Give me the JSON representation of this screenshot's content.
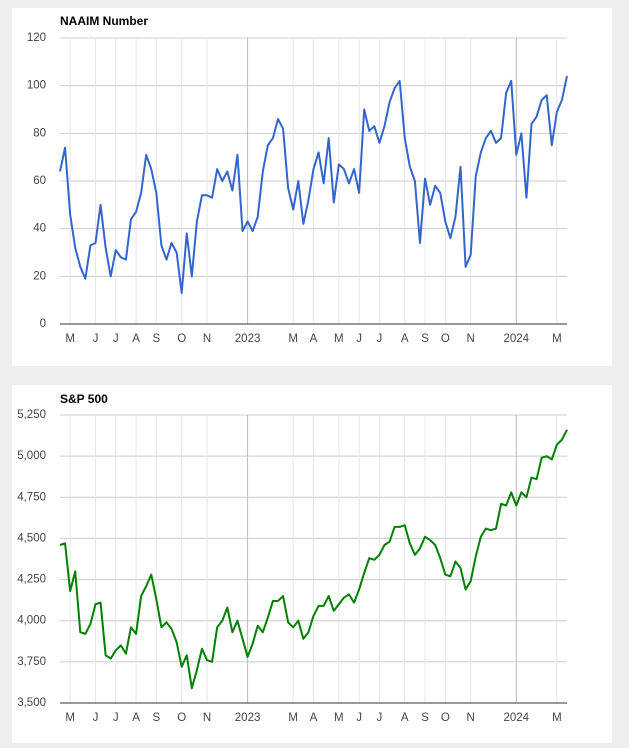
{
  "chart_data": [
    {
      "type": "line",
      "title": "NAAIM Number",
      "color": "#3366cc",
      "categories": [
        null,
        null,
        "M",
        null,
        null,
        null,
        null,
        "J",
        null,
        null,
        null,
        "J",
        null,
        null,
        null,
        "A",
        null,
        null,
        null,
        "S",
        null,
        null,
        null,
        null,
        "O",
        null,
        null,
        null,
        null,
        "N",
        null,
        null,
        null,
        null,
        null,
        null,
        null,
        "2023",
        null,
        null,
        null,
        null,
        null,
        null,
        null,
        null,
        "M",
        null,
        null,
        null,
        "A",
        null,
        null,
        null,
        null,
        "M",
        null,
        null,
        null,
        "J",
        null,
        null,
        null,
        "J",
        null,
        null,
        null,
        null,
        "A",
        null,
        null,
        null,
        "S",
        null,
        null,
        null,
        "O",
        null,
        null,
        null,
        null,
        "N",
        null,
        null,
        null,
        null,
        null,
        null,
        null,
        null,
        "2024",
        null,
        null,
        null,
        null,
        null,
        null,
        null,
        "M",
        null,
        null
      ],
      "values": [
        64,
        74,
        46,
        32,
        24,
        19,
        33,
        34,
        50,
        32,
        20,
        31,
        28,
        27,
        44,
        47,
        55,
        71,
        65,
        55,
        33,
        27,
        34,
        30,
        13,
        38,
        20,
        43,
        54,
        54,
        53,
        65,
        60,
        64,
        56,
        71,
        39,
        43,
        39,
        45,
        64,
        75,
        78,
        86,
        82,
        57,
        48,
        60,
        42,
        52,
        65,
        72,
        59,
        78,
        51,
        67,
        65,
        59,
        65,
        55,
        90,
        81,
        83,
        76,
        83,
        93,
        99,
        102,
        78,
        66,
        60,
        34,
        61,
        50,
        58,
        55,
        43,
        36,
        45,
        66,
        24,
        29,
        62,
        72,
        78,
        81,
        76,
        78,
        97,
        102,
        71,
        80,
        53,
        84,
        87,
        94,
        96,
        75,
        89,
        94,
        104
      ],
      "ylim": [
        0,
        120
      ],
      "yticks": [
        0,
        20,
        40,
        60,
        80,
        100,
        120
      ],
      "grid": true
    },
    {
      "type": "line",
      "title": "S&P 500",
      "color": "#008000",
      "categories": [
        null,
        null,
        "M",
        null,
        null,
        null,
        null,
        "J",
        null,
        null,
        null,
        "J",
        null,
        null,
        null,
        "A",
        null,
        null,
        null,
        "S",
        null,
        null,
        null,
        null,
        "O",
        null,
        null,
        null,
        null,
        "N",
        null,
        null,
        null,
        null,
        null,
        null,
        null,
        "2023",
        null,
        null,
        null,
        null,
        null,
        null,
        null,
        null,
        "M",
        null,
        null,
        null,
        "A",
        null,
        null,
        null,
        null,
        "M",
        null,
        null,
        null,
        "J",
        null,
        null,
        null,
        "J",
        null,
        null,
        null,
        null,
        "A",
        null,
        null,
        null,
        "S",
        null,
        null,
        null,
        "O",
        null,
        null,
        null,
        null,
        "N",
        null,
        null,
        null,
        null,
        null,
        null,
        null,
        null,
        "2024",
        null,
        null,
        null,
        null,
        null,
        null,
        null,
        "M",
        null,
        null
      ],
      "values": [
        4460,
        4470,
        4180,
        4300,
        3930,
        3920,
        3980,
        4100,
        4110,
        3790,
        3770,
        3820,
        3850,
        3800,
        3960,
        3920,
        4150,
        4210,
        4280,
        4130,
        3960,
        3990,
        3950,
        3870,
        3720,
        3790,
        3590,
        3700,
        3830,
        3760,
        3750,
        3960,
        4000,
        4080,
        3930,
        4000,
        3890,
        3780,
        3860,
        3970,
        3930,
        4020,
        4120,
        4120,
        4150,
        3990,
        3960,
        4000,
        3890,
        3930,
        4030,
        4090,
        4090,
        4150,
        4060,
        4100,
        4140,
        4160,
        4110,
        4190,
        4290,
        4380,
        4370,
        4400,
        4460,
        4480,
        4570,
        4570,
        4580,
        4470,
        4400,
        4440,
        4510,
        4490,
        4460,
        4380,
        4280,
        4270,
        4360,
        4320,
        4190,
        4240,
        4390,
        4510,
        4560,
        4550,
        4560,
        4710,
        4700,
        4780,
        4700,
        4780,
        4750,
        4870,
        4860,
        4990,
        5000,
        4980,
        5070,
        5100,
        5160
      ],
      "ylim": [
        3500,
        5250
      ],
      "yticks": [
        {
          "value": 3500,
          "label": "3,500"
        },
        {
          "value": 3750,
          "label": "3,750"
        },
        {
          "value": 4000,
          "label": "4,000"
        },
        {
          "value": 4250,
          "label": "4,250"
        },
        {
          "value": 4500,
          "label": "4,500"
        },
        {
          "value": 4750,
          "label": "4,750"
        },
        {
          "value": 5000,
          "label": "5,000"
        },
        {
          "value": 5250,
          "label": "5,250"
        }
      ],
      "grid": true
    }
  ]
}
